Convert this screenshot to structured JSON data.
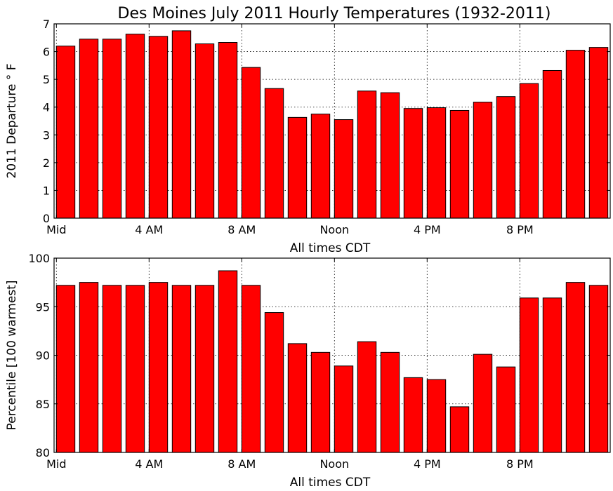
{
  "title": "Des Moines July 2011 Hourly Temperatures (1932-2011)",
  "colors": {
    "bar": "#ff0000",
    "edge": "#000000"
  },
  "chart_data": [
    {
      "type": "bar",
      "x": [
        0,
        1,
        2,
        3,
        4,
        5,
        6,
        7,
        8,
        9,
        10,
        11,
        12,
        13,
        14,
        15,
        16,
        17,
        18,
        19,
        20,
        21,
        22,
        23
      ],
      "values": [
        6.2,
        6.45,
        6.45,
        6.63,
        6.55,
        6.75,
        6.28,
        6.33,
        5.43,
        4.67,
        3.63,
        3.75,
        3.55,
        4.58,
        4.52,
        3.95,
        3.98,
        3.88,
        4.18,
        4.38,
        4.85,
        5.32,
        6.05,
        6.15
      ],
      "xticks": [
        0,
        4,
        8,
        12,
        16,
        20
      ],
      "xtick_labels": [
        "Mid",
        "4 AM",
        "8 AM",
        "Noon",
        "4 PM",
        "8 PM"
      ],
      "yticks": [
        "0",
        "1",
        "2",
        "3",
        "4",
        "5",
        "6",
        "7"
      ],
      "xlim": [
        -0.1,
        23.9
      ],
      "ylim": [
        0,
        7
      ],
      "xlabel": "All times CDT",
      "ylabel": "2011 Departure ° F",
      "grid": true
    },
    {
      "type": "bar",
      "x": [
        0,
        1,
        2,
        3,
        4,
        5,
        6,
        7,
        8,
        9,
        10,
        11,
        12,
        13,
        14,
        15,
        16,
        17,
        18,
        19,
        20,
        21,
        22,
        23
      ],
      "values": [
        97.2,
        97.5,
        97.2,
        97.2,
        97.5,
        97.2,
        97.2,
        98.7,
        97.2,
        94.4,
        91.2,
        90.3,
        88.9,
        91.4,
        90.3,
        87.7,
        87.5,
        84.7,
        90.1,
        88.8,
        95.9,
        95.9,
        97.5,
        97.2
      ],
      "xticks": [
        0,
        4,
        8,
        12,
        16,
        20
      ],
      "xtick_labels": [
        "Mid",
        "4 AM",
        "8 AM",
        "Noon",
        "4 PM",
        "8 PM"
      ],
      "yticks": [
        "80",
        "85",
        "90",
        "95",
        "100"
      ],
      "xlim": [
        -0.1,
        23.9
      ],
      "ylim": [
        80,
        100
      ],
      "xlabel": "All times CDT",
      "ylabel": "Percentile [100 warmest]",
      "grid": true
    }
  ]
}
